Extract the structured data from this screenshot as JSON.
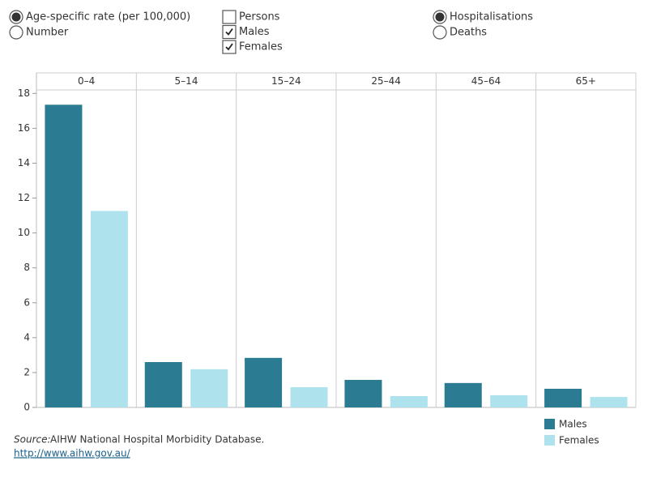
{
  "controls": {
    "measure": {
      "options": [
        "Age-specific rate (per 100,000)",
        "Number"
      ],
      "selected": 0
    },
    "sex": {
      "options": [
        "Persons",
        "Males",
        "Females"
      ],
      "checked": [
        false,
        true,
        true
      ]
    },
    "outcome": {
      "options": [
        "Hospitalisations",
        "Deaths"
      ],
      "selected": 0
    }
  },
  "chart_data": {
    "type": "bar",
    "categories": [
      "0–4",
      "5–14",
      "15–24",
      "25–44",
      "45–64",
      "65+"
    ],
    "series": [
      {
        "name": "Males",
        "color": "#2b7b93",
        "values": [
          17.35,
          2.6,
          2.84,
          1.58,
          1.4,
          1.07
        ]
      },
      {
        "name": "Females",
        "color": "#aee3ee",
        "values": [
          11.26,
          2.19,
          1.16,
          0.65,
          0.7,
          0.6
        ]
      }
    ],
    "ylim": [
      0,
      18.2
    ],
    "yticks": [
      0,
      2,
      4,
      6,
      8,
      10,
      12,
      14,
      16,
      18
    ],
    "grid": false,
    "legend_position": "bottom-right"
  },
  "source": {
    "label": "Source:",
    "text": "AIHW National Hospital Morbidity Database.",
    "link": "http://www.aihw.gov.au/"
  }
}
